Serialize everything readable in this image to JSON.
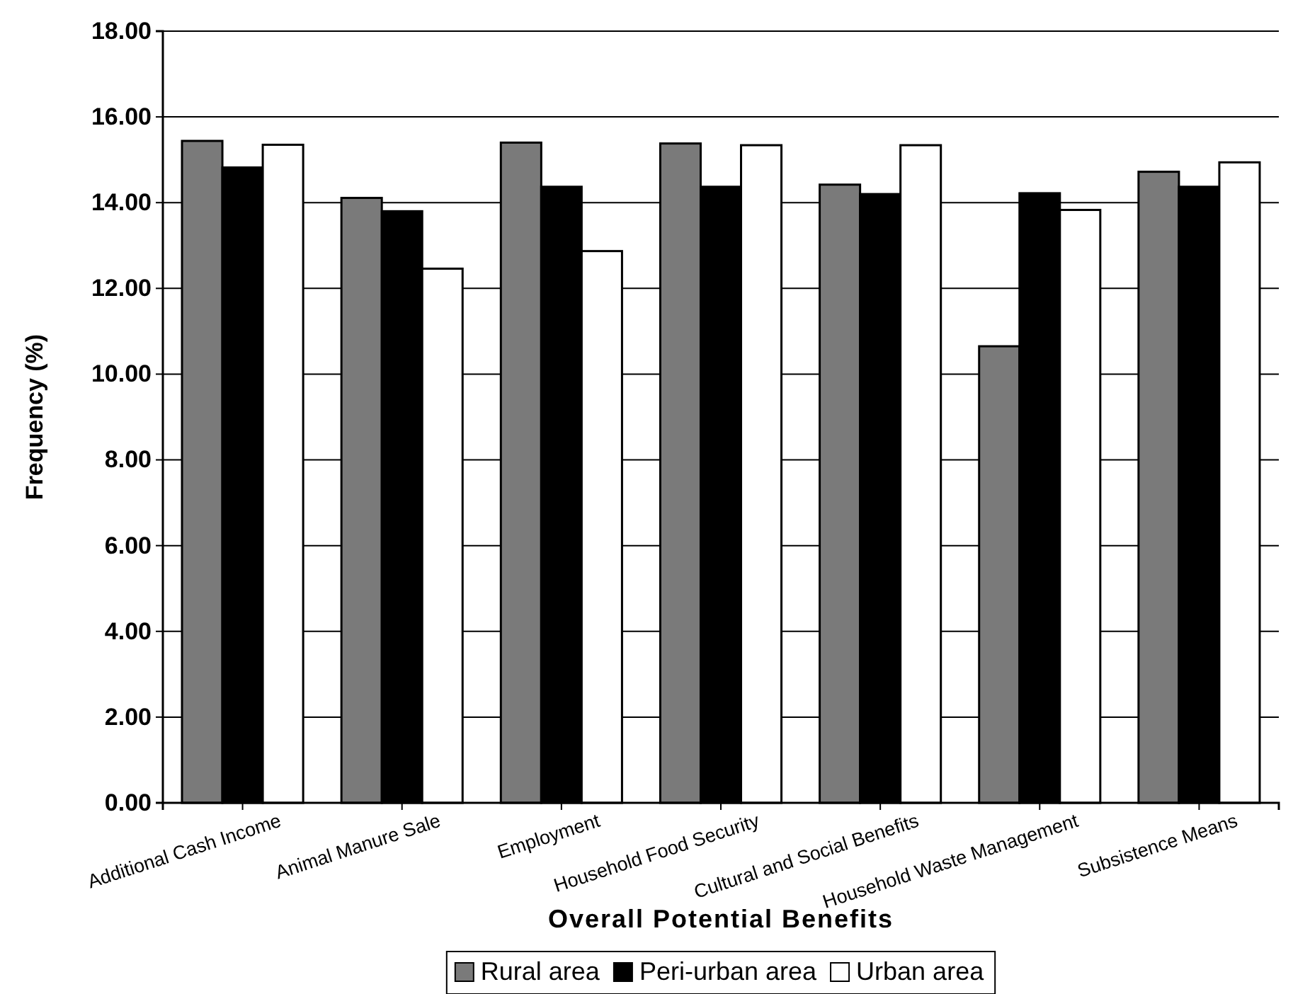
{
  "chart_data": {
    "type": "bar",
    "xlabel": "Overall Potential Benefits",
    "ylabel": "Frequency (%)",
    "categories": [
      "Additional Cash Income",
      "Animal Manure Sale",
      "Employment",
      "Household Food Security",
      "Cultural and Social Benefits",
      "Household Waste Management",
      "Subsistence Means"
    ],
    "series": [
      {
        "name": "Rural area",
        "color": "#7a7a7a",
        "values": [
          15.44,
          14.11,
          15.4,
          15.38,
          14.42,
          10.65,
          14.72
        ]
      },
      {
        "name": "Peri-urban area",
        "color": "#000000",
        "values": [
          14.82,
          13.8,
          14.37,
          14.37,
          14.2,
          14.22,
          14.37
        ]
      },
      {
        "name": "Urban area",
        "color": "#ffffff",
        "values": [
          15.35,
          12.46,
          12.87,
          15.34,
          15.34,
          13.83,
          14.94
        ]
      }
    ],
    "ylim": [
      0,
      18
    ],
    "yticks": [
      {
        "value": 0,
        "label": "0.00"
      },
      {
        "value": 2,
        "label": "2.00"
      },
      {
        "value": 4,
        "label": "4.00"
      },
      {
        "value": 6,
        "label": "6.00"
      },
      {
        "value": 8,
        "label": "8.00"
      },
      {
        "value": 10,
        "label": "10.00"
      },
      {
        "value": 12,
        "label": "12.00"
      },
      {
        "value": 14,
        "label": "14.00"
      },
      {
        "value": 16,
        "label": "16.00"
      },
      {
        "value": 18,
        "label": "18.00"
      }
    ],
    "grid": "y",
    "legend": "bottom"
  }
}
